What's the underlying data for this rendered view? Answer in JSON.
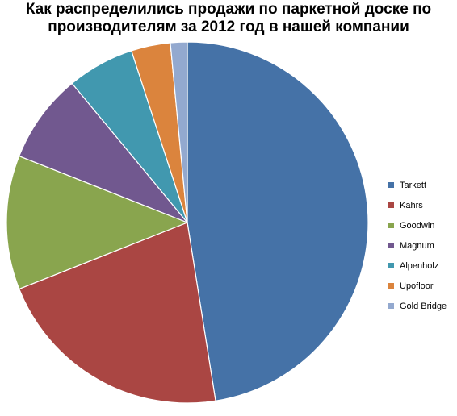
{
  "chart_data": {
    "type": "pie",
    "title_lines": [
      "Как распределились продажи по паркетной доске по",
      "производителям за 2012 год в нашей компании"
    ],
    "categories": [
      "Tarkett",
      "Kahrs",
      "Goodwin",
      "Magnum",
      "Alpenholz",
      "Upofloor",
      "Gold Bridge"
    ],
    "values": [
      47.5,
      21.5,
      12.0,
      8.0,
      6.0,
      3.5,
      1.5
    ],
    "unit": "%",
    "start_angle_deg": 0,
    "direction": "clockwise",
    "colors": [
      "#4572A7",
      "#AA4643",
      "#89A54E",
      "#71588F",
      "#4198AF",
      "#DB843D",
      "#93A9CF"
    ],
    "legend_position": "right",
    "data_labels": false
  }
}
